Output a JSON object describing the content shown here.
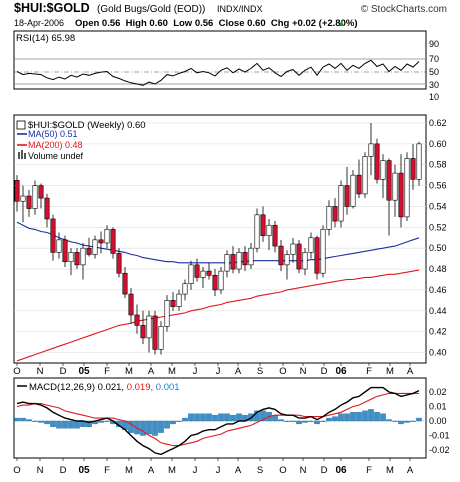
{
  "header": {
    "symbol": "$HUI:$GOLD",
    "name": "(Gold Bugs/Gold (EOD))",
    "exchange": "INDX/INDX",
    "watermark": "© StockCharts.com",
    "date": "18-Apr-2006",
    "ohlc": "Open 0.56  High 0.60  Low 0.56  Close 0.60  Chg +0.02 (+2.80%)",
    "up_arrow_color": "#1a9a1a"
  },
  "rsi_panel": {
    "label": "RSI(14) 65.98",
    "ticks": [
      "90",
      "70",
      "50",
      "30",
      "10"
    ]
  },
  "price_panel": {
    "legend": {
      "title": "$HUI:$GOLD (Weekly) 0.60",
      "ma50": "MA(50) 0.51",
      "ma200": "MA(200) 0.48",
      "volume": "Volume undef"
    },
    "price_ticks": [
      "0.62",
      "0.60",
      "0.58",
      "0.56",
      "0.54",
      "0.52",
      "0.50",
      "0.48",
      "0.46",
      "0.44",
      "0.42",
      "0.40"
    ]
  },
  "macd_panel": {
    "label_prefix": "MACD(12,26,9)",
    "macd_value": "0.021,",
    "signal_value": "0.019,",
    "hist_value": "0.001",
    "ticks": [
      "0.02",
      "0.01",
      "0.00",
      "-0.01",
      "-0.02"
    ]
  },
  "x_axis": {
    "labels": [
      "O",
      "N",
      "D",
      "05",
      "F",
      "M",
      "A",
      "M",
      "J",
      "J",
      "A",
      "S",
      "O",
      "N",
      "D",
      "06",
      "F",
      "M",
      "A"
    ]
  },
  "colors": {
    "up": "#ffffff",
    "down": "#d01030",
    "ma50": "#1c2e9e",
    "ma200": "#e0191c",
    "macd_line": "#000000",
    "signal_line": "#e0191c",
    "histogram": "#3f8fc9",
    "hist_label": "#1f7fc0"
  },
  "chart_data": {
    "type": "candlestick",
    "title": "$HUI:$GOLD (Weekly)",
    "period": "weekly",
    "x_range": [
      "2004-10",
      "2006-04-18"
    ],
    "ylim": [
      0.39,
      0.625
    ],
    "candles": [
      {
        "o": 0.565,
        "h": 0.57,
        "l": 0.535,
        "c": 0.545
      },
      {
        "o": 0.545,
        "h": 0.56,
        "l": 0.525,
        "c": 0.55
      },
      {
        "o": 0.55,
        "h": 0.556,
        "l": 0.53,
        "c": 0.538
      },
      {
        "o": 0.538,
        "h": 0.565,
        "l": 0.532,
        "c": 0.56
      },
      {
        "o": 0.56,
        "h": 0.562,
        "l": 0.538,
        "c": 0.548
      },
      {
        "o": 0.548,
        "h": 0.552,
        "l": 0.52,
        "c": 0.528
      },
      {
        "o": 0.528,
        "h": 0.532,
        "l": 0.488,
        "c": 0.496
      },
      {
        "o": 0.496,
        "h": 0.515,
        "l": 0.49,
        "c": 0.508
      },
      {
        "o": 0.508,
        "h": 0.512,
        "l": 0.482,
        "c": 0.487
      },
      {
        "o": 0.487,
        "h": 0.5,
        "l": 0.474,
        "c": 0.496
      },
      {
        "o": 0.496,
        "h": 0.5,
        "l": 0.48,
        "c": 0.484
      },
      {
        "o": 0.484,
        "h": 0.505,
        "l": 0.47,
        "c": 0.5
      },
      {
        "o": 0.5,
        "h": 0.51,
        "l": 0.492,
        "c": 0.494
      },
      {
        "o": 0.494,
        "h": 0.512,
        "l": 0.49,
        "c": 0.508
      },
      {
        "o": 0.508,
        "h": 0.516,
        "l": 0.495,
        "c": 0.505
      },
      {
        "o": 0.505,
        "h": 0.522,
        "l": 0.5,
        "c": 0.518
      },
      {
        "o": 0.518,
        "h": 0.52,
        "l": 0.49,
        "c": 0.495
      },
      {
        "o": 0.495,
        "h": 0.5,
        "l": 0.472,
        "c": 0.476
      },
      {
        "o": 0.476,
        "h": 0.482,
        "l": 0.452,
        "c": 0.456
      },
      {
        "o": 0.456,
        "h": 0.462,
        "l": 0.428,
        "c": 0.436
      },
      {
        "o": 0.436,
        "h": 0.446,
        "l": 0.418,
        "c": 0.426
      },
      {
        "o": 0.426,
        "h": 0.44,
        "l": 0.408,
        "c": 0.414
      },
      {
        "o": 0.414,
        "h": 0.44,
        "l": 0.4,
        "c": 0.435
      },
      {
        "o": 0.435,
        "h": 0.44,
        "l": 0.398,
        "c": 0.403
      },
      {
        "o": 0.403,
        "h": 0.43,
        "l": 0.398,
        "c": 0.425
      },
      {
        "o": 0.425,
        "h": 0.455,
        "l": 0.42,
        "c": 0.45
      },
      {
        "o": 0.45,
        "h": 0.458,
        "l": 0.44,
        "c": 0.444
      },
      {
        "o": 0.444,
        "h": 0.46,
        "l": 0.44,
        "c": 0.456
      },
      {
        "o": 0.456,
        "h": 0.47,
        "l": 0.45,
        "c": 0.466
      },
      {
        "o": 0.466,
        "h": 0.488,
        "l": 0.46,
        "c": 0.484
      },
      {
        "o": 0.484,
        "h": 0.49,
        "l": 0.468,
        "c": 0.472
      },
      {
        "o": 0.472,
        "h": 0.482,
        "l": 0.462,
        "c": 0.478
      },
      {
        "o": 0.478,
        "h": 0.486,
        "l": 0.47,
        "c": 0.474
      },
      {
        "o": 0.474,
        "h": 0.48,
        "l": 0.454,
        "c": 0.46
      },
      {
        "o": 0.46,
        "h": 0.482,
        "l": 0.456,
        "c": 0.478
      },
      {
        "o": 0.478,
        "h": 0.498,
        "l": 0.472,
        "c": 0.494
      },
      {
        "o": 0.494,
        "h": 0.502,
        "l": 0.476,
        "c": 0.48
      },
      {
        "o": 0.48,
        "h": 0.5,
        "l": 0.476,
        "c": 0.496
      },
      {
        "o": 0.496,
        "h": 0.502,
        "l": 0.478,
        "c": 0.484
      },
      {
        "o": 0.484,
        "h": 0.505,
        "l": 0.48,
        "c": 0.5
      },
      {
        "o": 0.5,
        "h": 0.538,
        "l": 0.496,
        "c": 0.532
      },
      {
        "o": 0.532,
        "h": 0.54,
        "l": 0.506,
        "c": 0.512
      },
      {
        "o": 0.512,
        "h": 0.528,
        "l": 0.498,
        "c": 0.522
      },
      {
        "o": 0.522,
        "h": 0.526,
        "l": 0.496,
        "c": 0.502
      },
      {
        "o": 0.502,
        "h": 0.508,
        "l": 0.478,
        "c": 0.484
      },
      {
        "o": 0.484,
        "h": 0.498,
        "l": 0.47,
        "c": 0.494
      },
      {
        "o": 0.494,
        "h": 0.51,
        "l": 0.486,
        "c": 0.504
      },
      {
        "o": 0.504,
        "h": 0.508,
        "l": 0.476,
        "c": 0.48
      },
      {
        "o": 0.48,
        "h": 0.5,
        "l": 0.474,
        "c": 0.496
      },
      {
        "o": 0.496,
        "h": 0.515,
        "l": 0.49,
        "c": 0.51
      },
      {
        "o": 0.51,
        "h": 0.512,
        "l": 0.47,
        "c": 0.476
      },
      {
        "o": 0.476,
        "h": 0.522,
        "l": 0.472,
        "c": 0.518
      },
      {
        "o": 0.518,
        "h": 0.546,
        "l": 0.512,
        "c": 0.54
      },
      {
        "o": 0.54,
        "h": 0.548,
        "l": 0.52,
        "c": 0.526
      },
      {
        "o": 0.526,
        "h": 0.565,
        "l": 0.52,
        "c": 0.56
      },
      {
        "o": 0.56,
        "h": 0.578,
        "l": 0.532,
        "c": 0.54
      },
      {
        "o": 0.54,
        "h": 0.575,
        "l": 0.538,
        "c": 0.57
      },
      {
        "o": 0.57,
        "h": 0.585,
        "l": 0.548,
        "c": 0.552
      },
      {
        "o": 0.552,
        "h": 0.592,
        "l": 0.548,
        "c": 0.588
      },
      {
        "o": 0.588,
        "h": 0.62,
        "l": 0.57,
        "c": 0.6
      },
      {
        "o": 0.6,
        "h": 0.605,
        "l": 0.562,
        "c": 0.566
      },
      {
        "o": 0.566,
        "h": 0.59,
        "l": 0.548,
        "c": 0.584
      },
      {
        "o": 0.584,
        "h": 0.586,
        "l": 0.512,
        "c": 0.546
      },
      {
        "o": 0.546,
        "h": 0.58,
        "l": 0.53,
        "c": 0.572
      },
      {
        "o": 0.572,
        "h": 0.59,
        "l": 0.52,
        "c": 0.53
      },
      {
        "o": 0.53,
        "h": 0.592,
        "l": 0.526,
        "c": 0.586
      },
      {
        "o": 0.586,
        "h": 0.6,
        "l": 0.556,
        "c": 0.566
      },
      {
        "o": 0.566,
        "h": 0.602,
        "l": 0.56,
        "c": 0.6
      }
    ],
    "ma50": [
      0.525,
      0.522,
      0.519,
      0.518,
      0.516,
      0.515,
      0.513,
      0.51,
      0.508,
      0.506,
      0.505,
      0.503,
      0.502,
      0.501,
      0.5,
      0.499,
      0.498,
      0.497,
      0.496,
      0.494,
      0.493,
      0.491,
      0.49,
      0.489,
      0.488,
      0.487,
      0.487,
      0.486,
      0.486,
      0.486,
      0.486,
      0.486,
      0.486,
      0.486,
      0.486,
      0.486,
      0.486,
      0.487,
      0.487,
      0.488,
      0.488,
      0.488,
      0.488,
      0.488,
      0.488,
      0.488,
      0.488,
      0.488,
      0.488,
      0.489,
      0.489,
      0.49,
      0.491,
      0.492,
      0.493,
      0.494,
      0.495,
      0.496,
      0.497,
      0.498,
      0.499,
      0.5,
      0.501,
      0.502,
      0.504,
      0.506,
      0.508,
      0.51
    ],
    "ma200": [
      0.392,
      0.394,
      0.396,
      0.398,
      0.4,
      0.402,
      0.404,
      0.406,
      0.408,
      0.41,
      0.412,
      0.414,
      0.416,
      0.418,
      0.42,
      0.422,
      0.424,
      0.426,
      0.427,
      0.428,
      0.43,
      0.431,
      0.432,
      0.433,
      0.434,
      0.435,
      0.436,
      0.437,
      0.438,
      0.44,
      0.441,
      0.442,
      0.444,
      0.445,
      0.446,
      0.448,
      0.449,
      0.45,
      0.451,
      0.452,
      0.454,
      0.455,
      0.456,
      0.457,
      0.458,
      0.46,
      0.461,
      0.462,
      0.463,
      0.464,
      0.465,
      0.466,
      0.467,
      0.468,
      0.469,
      0.47,
      0.47,
      0.471,
      0.472,
      0.472,
      0.473,
      0.474,
      0.475,
      0.475,
      0.476,
      0.477,
      0.478,
      0.479
    ],
    "rsi": [
      50,
      45,
      47,
      46,
      45,
      40,
      37,
      41,
      38,
      44,
      41,
      46,
      44,
      47,
      49,
      50,
      42,
      39,
      35,
      32,
      30,
      28,
      33,
      30,
      36,
      45,
      43,
      47,
      50,
      55,
      48,
      50,
      48,
      43,
      52,
      56,
      48,
      54,
      49,
      55,
      63,
      52,
      56,
      48,
      42,
      50,
      53,
      44,
      52,
      57,
      44,
      57,
      62,
      55,
      63,
      52,
      60,
      55,
      63,
      68,
      58,
      62,
      50,
      58,
      52,
      62,
      57,
      66
    ],
    "macd": [
      0.012,
      0.013,
      0.012,
      0.012,
      0.011,
      0.009,
      0.006,
      0.004,
      0.002,
      0.001,
      0.0,
      0.0,
      -0.001,
      0.0,
      0.001,
      0.002,
      0.0,
      -0.003,
      -0.006,
      -0.01,
      -0.014,
      -0.017,
      -0.019,
      -0.022,
      -0.023,
      -0.021,
      -0.019,
      -0.017,
      -0.014,
      -0.01,
      -0.009,
      -0.007,
      -0.006,
      -0.006,
      -0.004,
      -0.002,
      -0.002,
      0.0,
      0.0,
      0.002,
      0.006,
      0.008,
      0.009,
      0.008,
      0.005,
      0.004,
      0.004,
      0.002,
      0.002,
      0.003,
      0.001,
      0.003,
      0.006,
      0.008,
      0.011,
      0.013,
      0.016,
      0.017,
      0.02,
      0.023,
      0.023,
      0.023,
      0.02,
      0.019,
      0.017,
      0.018,
      0.019,
      0.021
    ],
    "signal": [
      0.01,
      0.011,
      0.011,
      0.012,
      0.012,
      0.011,
      0.01,
      0.009,
      0.007,
      0.006,
      0.005,
      0.004,
      0.003,
      0.002,
      0.002,
      0.002,
      0.002,
      0.001,
      0.0,
      -0.002,
      -0.005,
      -0.007,
      -0.01,
      -0.012,
      -0.015,
      -0.016,
      -0.017,
      -0.017,
      -0.016,
      -0.015,
      -0.014,
      -0.012,
      -0.011,
      -0.01,
      -0.009,
      -0.007,
      -0.006,
      -0.005,
      -0.004,
      -0.003,
      -0.001,
      0.001,
      0.003,
      0.004,
      0.004,
      0.004,
      0.004,
      0.004,
      0.003,
      0.003,
      0.003,
      0.003,
      0.004,
      0.005,
      0.006,
      0.008,
      0.01,
      0.011,
      0.013,
      0.015,
      0.017,
      0.018,
      0.019,
      0.019,
      0.019,
      0.019,
      0.019,
      0.019
    ]
  }
}
